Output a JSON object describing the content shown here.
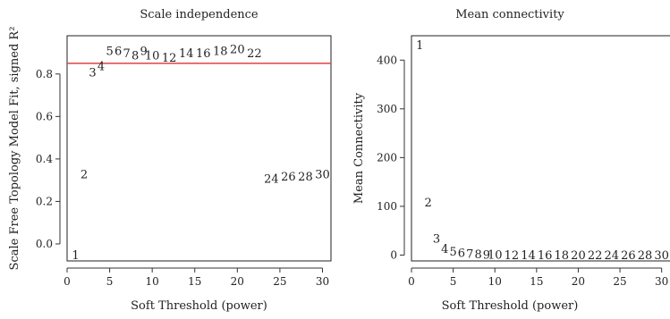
{
  "chart_data": [
    {
      "type": "scatter",
      "title": "Scale independence",
      "xlabel": "Soft Threshold (power)",
      "ylabel": "Scale Free Topology Model Fit, signed R²",
      "xlim": [
        0,
        31
      ],
      "ylim": [
        -0.08,
        0.98
      ],
      "x_ticks": [
        "0",
        "5",
        "10",
        "15",
        "20",
        "25",
        "30"
      ],
      "y_ticks": [
        "0.0",
        "0.2",
        "0.4",
        "0.6",
        "0.8"
      ],
      "x_tick_values": [
        0,
        5,
        10,
        15,
        20,
        25,
        30
      ],
      "y_tick_values": [
        0.0,
        0.2,
        0.4,
        0.6,
        0.8
      ],
      "reference_line": {
        "y": 0.85,
        "color": "#e04040"
      },
      "points": [
        {
          "x": 1,
          "y": -0.05,
          "label": "1"
        },
        {
          "x": 2,
          "y": 0.33,
          "label": "2"
        },
        {
          "x": 3,
          "y": 0.81,
          "label": "3"
        },
        {
          "x": 4,
          "y": 0.84,
          "label": "4"
        },
        {
          "x": 5,
          "y": 0.91,
          "label": "5"
        },
        {
          "x": 6,
          "y": 0.91,
          "label": "6"
        },
        {
          "x": 7,
          "y": 0.9,
          "label": "7"
        },
        {
          "x": 8,
          "y": 0.89,
          "label": "8"
        },
        {
          "x": 9,
          "y": 0.91,
          "label": "9"
        },
        {
          "x": 10,
          "y": 0.89,
          "label": "10"
        },
        {
          "x": 12,
          "y": 0.88,
          "label": "12"
        },
        {
          "x": 14,
          "y": 0.9,
          "label": "14"
        },
        {
          "x": 16,
          "y": 0.9,
          "label": "16"
        },
        {
          "x": 18,
          "y": 0.91,
          "label": "18"
        },
        {
          "x": 20,
          "y": 0.92,
          "label": "20"
        },
        {
          "x": 22,
          "y": 0.9,
          "label": "22"
        },
        {
          "x": 24,
          "y": 0.31,
          "label": "24"
        },
        {
          "x": 26,
          "y": 0.32,
          "label": "26"
        },
        {
          "x": 28,
          "y": 0.32,
          "label": "28"
        },
        {
          "x": 30,
          "y": 0.33,
          "label": "30"
        }
      ]
    },
    {
      "type": "scatter",
      "title": "Mean connectivity",
      "xlabel": "Soft Threshold (power)",
      "ylabel": "Mean Connectivity",
      "xlim": [
        0,
        31
      ],
      "ylim": [
        -12,
        450
      ],
      "x_ticks": [
        "0",
        "5",
        "10",
        "15",
        "20",
        "25",
        "30"
      ],
      "y_ticks": [
        "0",
        "100",
        "200",
        "300",
        "400"
      ],
      "x_tick_values": [
        0,
        5,
        10,
        15,
        20,
        25,
        30
      ],
      "y_tick_values": [
        0,
        100,
        200,
        300,
        400
      ],
      "points": [
        {
          "x": 1,
          "y": 432,
          "label": "1"
        },
        {
          "x": 2,
          "y": 109,
          "label": "2"
        },
        {
          "x": 3,
          "y": 35,
          "label": "3"
        },
        {
          "x": 4,
          "y": 14,
          "label": "4"
        },
        {
          "x": 5,
          "y": 8,
          "label": "5"
        },
        {
          "x": 6,
          "y": 5,
          "label": "6"
        },
        {
          "x": 7,
          "y": 4,
          "label": "7"
        },
        {
          "x": 8,
          "y": 3,
          "label": "8"
        },
        {
          "x": 9,
          "y": 2,
          "label": "9"
        },
        {
          "x": 10,
          "y": 2,
          "label": "10"
        },
        {
          "x": 12,
          "y": 1,
          "label": "12"
        },
        {
          "x": 14,
          "y": 1,
          "label": "14"
        },
        {
          "x": 16,
          "y": 1,
          "label": "16"
        },
        {
          "x": 18,
          "y": 1,
          "label": "18"
        },
        {
          "x": 20,
          "y": 1,
          "label": "20"
        },
        {
          "x": 22,
          "y": 1,
          "label": "22"
        },
        {
          "x": 24,
          "y": 1,
          "label": "24"
        },
        {
          "x": 26,
          "y": 1,
          "label": "26"
        },
        {
          "x": 28,
          "y": 1,
          "label": "28"
        },
        {
          "x": 30,
          "y": 1,
          "label": "30"
        }
      ]
    }
  ]
}
